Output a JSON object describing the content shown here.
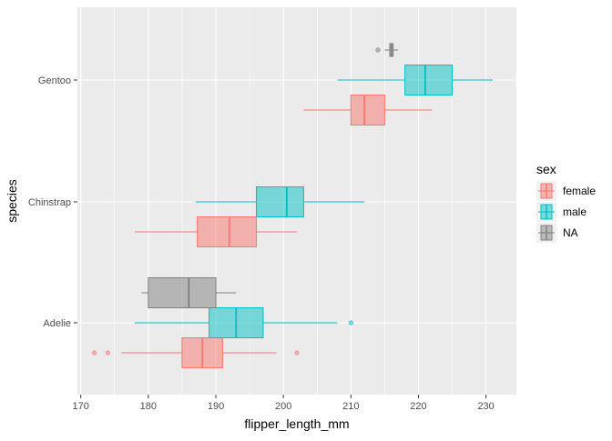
{
  "chart_data": {
    "type": "boxplot",
    "orientation": "horizontal",
    "xlabel": "flipper_length_mm",
    "ylabel": "species",
    "xlim": [
      169.5,
      234.5
    ],
    "x_ticks": [
      170,
      180,
      190,
      200,
      210,
      220,
      230
    ],
    "x_tick_labels": [
      "170",
      "180",
      "190",
      "200",
      "210",
      "220",
      "230"
    ],
    "categories": [
      "Adelie",
      "Chinstrap",
      "Gentoo"
    ],
    "legend": {
      "title": "sex",
      "position": "right",
      "entries": [
        {
          "label": "female",
          "color": "#F8766D"
        },
        {
          "label": "male",
          "color": "#00BFC4"
        },
        {
          "label": "NA",
          "color": "#7F7F7F"
        }
      ]
    },
    "grid": true,
    "panel_background": "#EBEBEB",
    "series": [
      {
        "name": "female",
        "color": "#F8766D",
        "boxes": [
          {
            "category": "Adelie",
            "whisker_low": 176,
            "q1": 185,
            "median": 188,
            "q3": 191,
            "whisker_high": 199,
            "outliers": [
              172,
              174,
              202
            ]
          },
          {
            "category": "Chinstrap",
            "whisker_low": 178,
            "q1": 187.25,
            "median": 192,
            "q3": 196,
            "whisker_high": 202,
            "outliers": []
          },
          {
            "category": "Gentoo",
            "whisker_low": 203,
            "q1": 210,
            "median": 212,
            "q3": 215,
            "whisker_high": 222,
            "outliers": []
          }
        ]
      },
      {
        "name": "male",
        "color": "#00BFC4",
        "boxes": [
          {
            "category": "Adelie",
            "whisker_low": 178,
            "q1": 189,
            "median": 193,
            "q3": 197,
            "whisker_high": 208,
            "outliers": [
              210
            ]
          },
          {
            "category": "Chinstrap",
            "whisker_low": 187,
            "q1": 196,
            "median": 200.5,
            "q3": 203,
            "whisker_high": 212,
            "outliers": []
          },
          {
            "category": "Gentoo",
            "whisker_low": 208,
            "q1": 218,
            "median": 221,
            "q3": 225,
            "whisker_high": 231,
            "outliers": []
          }
        ]
      },
      {
        "name": "NA",
        "color": "#7F7F7F",
        "boxes": [
          {
            "category": "Adelie",
            "whisker_low": 179,
            "q1": 180,
            "median": 186,
            "q3": 190,
            "whisker_high": 193,
            "outliers": []
          },
          {
            "category": "Gentoo",
            "whisker_low": 215,
            "q1": 215.75,
            "median": 216,
            "q3": 216.25,
            "whisker_high": 217,
            "outliers": [
              214
            ]
          }
        ]
      }
    ]
  }
}
